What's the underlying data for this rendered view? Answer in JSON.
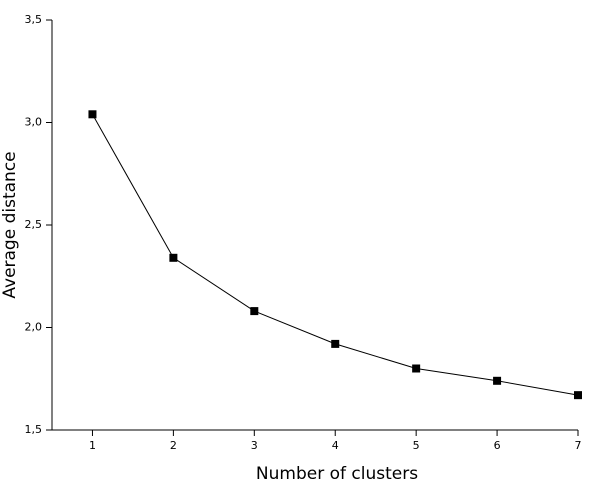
{
  "chart_data": {
    "type": "line",
    "x_label": "Number of clusters",
    "y_label": "Average distance",
    "x": [
      1,
      2,
      3,
      4,
      5,
      6,
      7
    ],
    "series": [
      {
        "color": "#000000",
        "values": [
          3.04,
          2.34,
          2.08,
          1.92,
          1.8,
          1.74,
          1.67
        ]
      }
    ],
    "xlim": [
      0.5,
      7
    ],
    "xticks": [
      1,
      2,
      3,
      4,
      5,
      6,
      7
    ],
    "ylim": [
      1.5,
      3.5
    ],
    "yticks": [
      {
        "value": 1.5,
        "label": "1,5"
      },
      {
        "value": 2.0,
        "label": "2,0"
      },
      {
        "value": 2.5,
        "label": "2,5"
      },
      {
        "value": 3.0,
        "label": "3,0"
      },
      {
        "value": 3.5,
        "label": "3,5"
      }
    ],
    "grid": false
  }
}
